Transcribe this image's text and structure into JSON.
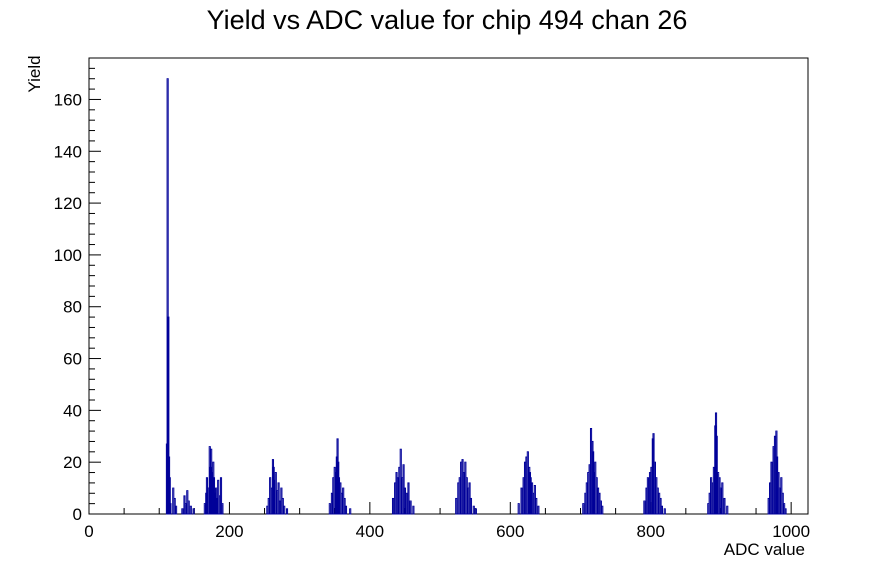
{
  "chart_data": {
    "type": "bar",
    "title": "Yield vs ADC value for chip 494 chan 26",
    "xlabel": "ADC value",
    "ylabel": "Yield",
    "xlim": [
      0,
      1024
    ],
    "ylim": [
      0,
      176
    ],
    "x_ticks": [
      0,
      200,
      400,
      600,
      800,
      1000
    ],
    "y_ticks": [
      0,
      20,
      40,
      60,
      80,
      100,
      120,
      140,
      160
    ],
    "grid": false,
    "legend": "none",
    "line_color": "#000099",
    "series": [
      {
        "x": [
          111,
          112,
          113,
          114,
          115,
          116,
          120,
          122,
          124,
          133,
          136,
          138,
          140,
          142,
          145,
          149,
          165,
          167,
          168,
          170,
          172,
          173,
          174,
          175,
          176,
          177,
          178,
          179,
          181,
          182,
          184,
          186,
          188,
          190,
          254,
          256,
          258,
          260,
          262,
          263,
          264,
          266,
          268,
          270,
          272,
          274,
          276,
          278,
          282,
          343,
          346,
          348,
          350,
          352,
          353,
          354,
          355,
          356,
          358,
          360,
          362,
          364,
          366,
          372,
          433,
          436,
          438,
          440,
          442,
          444,
          446,
          448,
          450,
          452,
          455,
          458,
          462,
          523,
          526,
          528,
          530,
          532,
          534,
          536,
          538,
          540,
          542,
          544,
          548,
          551,
          612,
          616,
          619,
          621,
          623,
          625,
          627,
          628,
          629,
          631,
          633,
          635,
          637,
          640,
          704,
          707,
          709,
          711,
          713,
          715,
          717,
          718,
          719,
          721,
          723,
          725,
          727,
          729,
          731,
          791,
          794,
          796,
          799,
          801,
          803,
          804,
          806,
          808,
          810,
          812,
          814,
          816,
          820,
          882,
          884,
          886,
          888,
          890,
          892,
          893,
          894,
          896,
          898,
          900,
          902,
          905,
          909,
          968,
          970,
          972,
          975,
          977,
          979,
          980,
          982,
          984,
          986,
          988,
          990,
          992
        ],
        "values": [
          27,
          168,
          76,
          22,
          14,
          4,
          10,
          6,
          3,
          2,
          7,
          4,
          9,
          5,
          3,
          2,
          4,
          8,
          14,
          10,
          26,
          18,
          25,
          16,
          12,
          20,
          14,
          8,
          10,
          6,
          13,
          7,
          14,
          4,
          3,
          6,
          14,
          10,
          21,
          18,
          13,
          16,
          9,
          12,
          5,
          10,
          6,
          3,
          2,
          4,
          8,
          14,
          18,
          16,
          22,
          29,
          20,
          14,
          12,
          8,
          10,
          6,
          3,
          2,
          6,
          12,
          16,
          14,
          18,
          25,
          14,
          19,
          10,
          8,
          12,
          5,
          3,
          6,
          12,
          14,
          20,
          21,
          16,
          20,
          14,
          10,
          12,
          6,
          3,
          2,
          4,
          10,
          14,
          20,
          22,
          24,
          18,
          16,
          14,
          12,
          8,
          11,
          6,
          3,
          4,
          8,
          12,
          16,
          19,
          33,
          28,
          24,
          16,
          20,
          14,
          10,
          8,
          5,
          3,
          5,
          10,
          14,
          16,
          18,
          29,
          31,
          20,
          14,
          10,
          8,
          6,
          3,
          2,
          4,
          8,
          14,
          12,
          18,
          34,
          39,
          30,
          16,
          14,
          10,
          12,
          6,
          3,
          6,
          12,
          20,
          26,
          30,
          32,
          22,
          16,
          10,
          14,
          8,
          4,
          2
        ]
      }
    ]
  }
}
